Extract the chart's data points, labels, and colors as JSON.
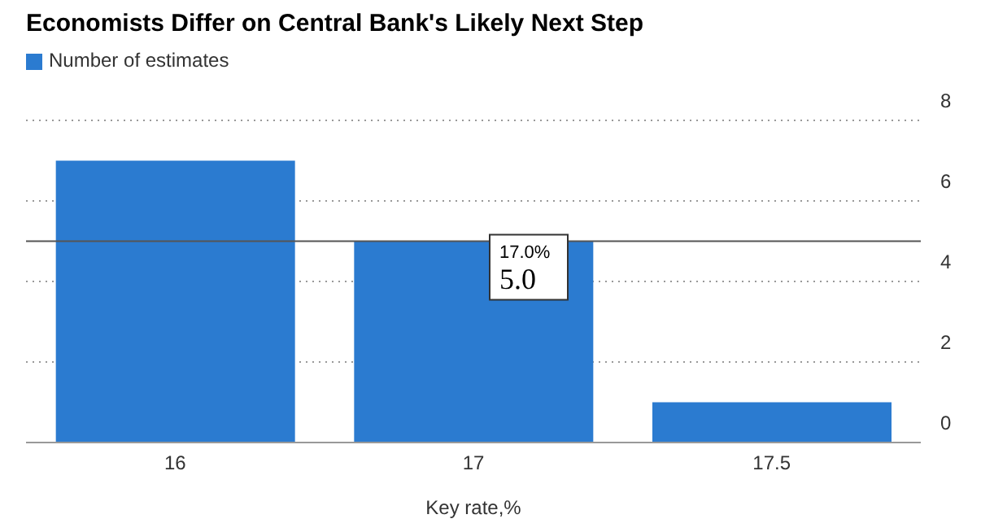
{
  "chart_data": {
    "type": "bar",
    "title": "Economists Differ on Central Bank's Likely Next Step",
    "xlabel": "Key rate,%",
    "categories": [
      "16",
      "17",
      "17.5"
    ],
    "series": [
      {
        "name": "Number of estimates",
        "color": "#2b7bd0",
        "values": [
          7,
          5,
          1
        ]
      }
    ],
    "ylim": [
      0,
      8
    ],
    "yticks": [
      0,
      2,
      4,
      6,
      8
    ],
    "grid": "y",
    "legend": "top left",
    "ref_lines": [
      {
        "axis": "y",
        "value": 5,
        "color": "#555555"
      }
    ],
    "annotations": [
      {
        "text": "17.0%",
        "x": "17",
        "y": 5
      },
      {
        "text": "5.0",
        "x": "17",
        "y": 5
      }
    ]
  }
}
